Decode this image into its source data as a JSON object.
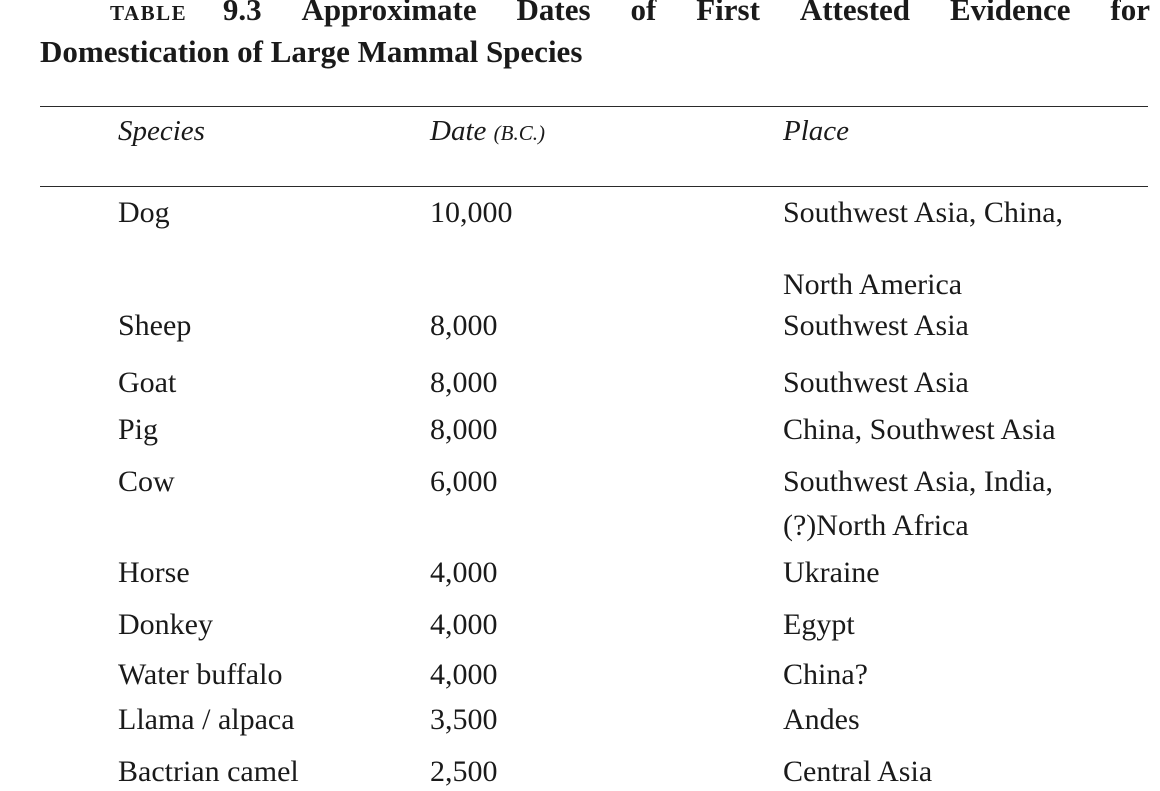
{
  "title": {
    "label": "TABLE",
    "number": "9.3",
    "words_line1": [
      "Approximate",
      "Dates",
      "of",
      "First",
      "Attested",
      "Evidence",
      "for"
    ],
    "line2": "Domestication of Large Mammal Species"
  },
  "columns": {
    "species": "Species",
    "date": "Date",
    "date_unit": "(B.C.)",
    "place": "Place"
  },
  "rows": [
    {
      "species": "Dog",
      "date": "10,000",
      "place": [
        "Southwest Asia, China,",
        "North America"
      ]
    },
    {
      "species": "Sheep",
      "date": "8,000",
      "place": [
        "Southwest Asia"
      ]
    },
    {
      "species": "Goat",
      "date": "8,000",
      "place": [
        "Southwest Asia"
      ]
    },
    {
      "species": "Pig",
      "date": "8,000",
      "place": [
        "China, Southwest Asia"
      ]
    },
    {
      "species": "Cow",
      "date": "6,000",
      "place": [
        "Southwest Asia, India,",
        "(?)North Africa"
      ]
    },
    {
      "species": "Horse",
      "date": "4,000",
      "place": [
        "Ukraine"
      ]
    },
    {
      "species": "Donkey",
      "date": "4,000",
      "place": [
        "Egypt"
      ]
    },
    {
      "species": "Water buffalo",
      "date": "4,000",
      "place": [
        "China?"
      ]
    },
    {
      "species": "Llama / alpaca",
      "date": "3,500",
      "place": [
        "Andes"
      ]
    },
    {
      "species": "Bactrian camel",
      "date": "2,500",
      "place": [
        "Central Asia"
      ]
    }
  ]
}
